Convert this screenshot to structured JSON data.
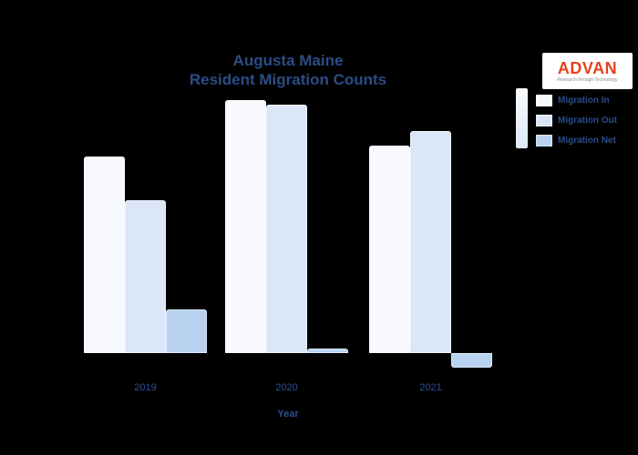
{
  "page": {
    "background": "#000000"
  },
  "header": {
    "title_line1": "Augusta Maine",
    "title_line2": "Resident Migration Counts",
    "title_color": "#2b4c86"
  },
  "logo": {
    "name": "ADVAN",
    "tagline": "Research through Technology",
    "name_color": "#e8411c",
    "background": "#ffffff"
  },
  "legend": {
    "items": [
      {
        "label": "Migration In",
        "color": "#f8f9fe"
      },
      {
        "label": "Migration Out",
        "color": "#dbe6f7"
      },
      {
        "label": "Migration Net",
        "color": "#b9d2ef"
      }
    ]
  },
  "chart_data": {
    "type": "bar",
    "title": "Augusta Maine Resident Migration Counts",
    "categories": [
      "2019",
      "2020",
      "2021"
    ],
    "series": [
      {
        "name": "Migration In",
        "color": "#f8f9fe",
        "values": [
          2160,
          2780,
          2280
        ]
      },
      {
        "name": "Migration Out",
        "color": "#dbe6f7",
        "values": [
          1680,
          2730,
          2440
        ]
      },
      {
        "name": "Migration Net",
        "color": "#b9d2ef",
        "values": [
          480,
          50,
          -160
        ]
      }
    ],
    "xlabel": "Year",
    "ylabel": "",
    "ylim": [
      -300,
      2900
    ],
    "grid": false,
    "legend_position": "top-right",
    "y_tick_labels_visible": false
  }
}
